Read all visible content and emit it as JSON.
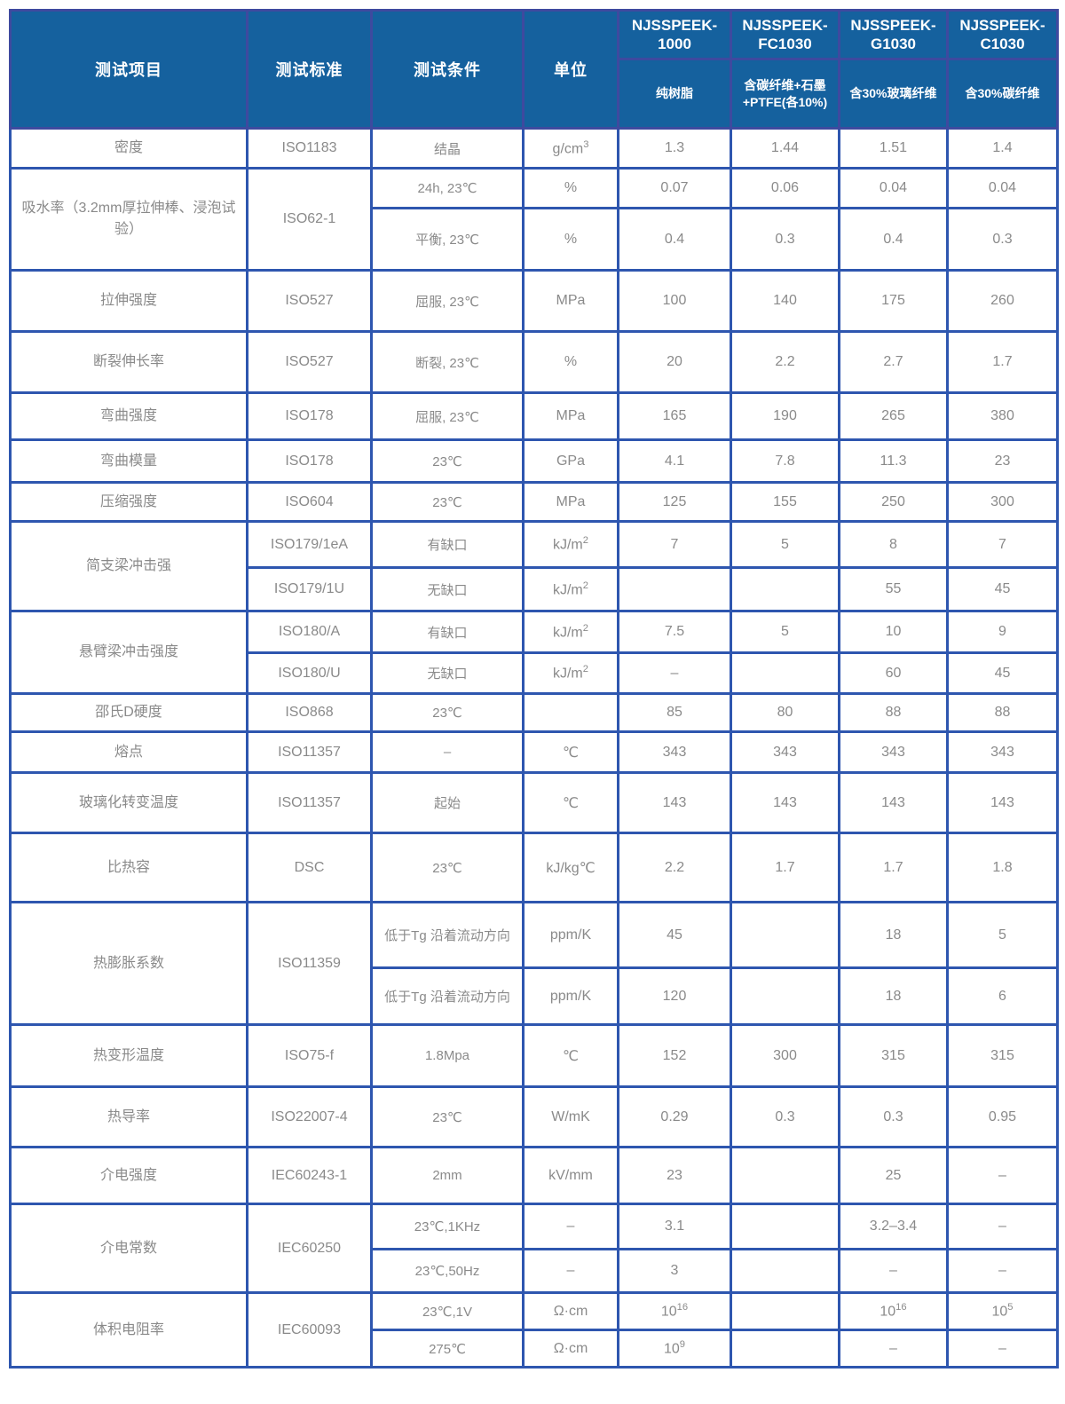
{
  "colors": {
    "header_bg": "#15619e",
    "grid_blue": "#2e56af",
    "header_grid_blue": "#3e4a9f",
    "body_text_gray": "#8a8a8a",
    "header_text": "#ffffff"
  },
  "header": {
    "columns": [
      "测试项目",
      "测试标准",
      "测试条件",
      "单位"
    ],
    "products": [
      {
        "name": "NJSSPEEK-\n1000",
        "desc": "纯树脂"
      },
      {
        "name": "NJSSPEEK-\nFC1030",
        "desc": "含碳纤维+石墨\n+PTFE(各10%)"
      },
      {
        "name": "NJSSPEEK-\nG1030",
        "desc": "含30%玻璃纤维"
      },
      {
        "name": "NJSSPEEK-\nC1030",
        "desc": "含30%碳纤维"
      }
    ]
  },
  "rows": [
    {
      "item": "密度",
      "std": "ISO1183",
      "cond": "结晶",
      "unit": "g/cm^3",
      "v": [
        "1.3",
        "1.44",
        "1.51",
        "1.4"
      ]
    },
    {
      "item": "吸水率（3.2mm厚拉伸棒、浸泡试验）",
      "std": "ISO62-1",
      "cond": "24h, 23℃",
      "unit": "%",
      "v": [
        "0.07",
        "0.06",
        "0.04",
        "0.04"
      ]
    },
    {
      "cond": "平衡, 23℃",
      "unit": "%",
      "v": [
        "0.4",
        "0.3",
        "0.4",
        "0.3"
      ]
    },
    {
      "item": "拉伸强度",
      "std": "ISO527",
      "cond": "屈服, 23℃",
      "unit": "MPa",
      "v": [
        "100",
        "140",
        "175",
        "260"
      ]
    },
    {
      "item": "断裂伸长率",
      "std": "ISO527",
      "cond": "断裂, 23℃",
      "unit": "%",
      "v": [
        "20",
        "2.2",
        "2.7",
        "1.7"
      ]
    },
    {
      "item": "弯曲强度",
      "std": "ISO178",
      "cond": "屈服, 23℃",
      "unit": "MPa",
      "v": [
        "165",
        "190",
        "265",
        "380"
      ]
    },
    {
      "item": "弯曲模量",
      "std": "ISO178",
      "cond": "23℃",
      "unit": "GPa",
      "v": [
        "4.1",
        "7.8",
        "11.3",
        "23"
      ]
    },
    {
      "item": "压缩强度",
      "std": "ISO604",
      "cond": "23℃",
      "unit": "MPa",
      "v": [
        "125",
        "155",
        "250",
        "300"
      ]
    },
    {
      "item": "简支梁冲击强",
      "std": "ISO179/1eA",
      "cond": "有缺口",
      "unit": "kJ/m^2",
      "v": [
        "7",
        "5",
        "8",
        "7"
      ]
    },
    {
      "std": "ISO179/1U",
      "cond": "无缺口",
      "unit": "kJ/m^2",
      "v": [
        "",
        "",
        "55",
        "45"
      ]
    },
    {
      "item": "悬臂梁冲击强度",
      "std": "ISO180/A",
      "cond": "有缺口",
      "unit": "kJ/m^2",
      "v": [
        "7.5",
        "5",
        "10",
        "9"
      ]
    },
    {
      "std": "ISO180/U",
      "cond": "无缺口",
      "unit": "kJ/m^2",
      "v": [
        "–",
        "",
        "60",
        "45"
      ]
    },
    {
      "item": "邵氏D硬度",
      "std": "ISO868",
      "cond": "23℃",
      "unit": "",
      "v": [
        "85",
        "80",
        "88",
        "88"
      ]
    },
    {
      "item": "熔点",
      "std": "ISO11357",
      "cond": "–",
      "unit": "℃",
      "v": [
        "343",
        "343",
        "343",
        "343"
      ]
    },
    {
      "item": "玻璃化转变温度",
      "std": "ISO11357",
      "cond": "起始",
      "unit": "℃",
      "v": [
        "143",
        "143",
        "143",
        "143"
      ]
    },
    {
      "item": "比热容",
      "std": "DSC",
      "cond": "23℃",
      "unit": "kJ/kg℃",
      "v": [
        "2.2",
        "1.7",
        "1.7",
        "1.8"
      ]
    },
    {
      "item": "热膨胀系数",
      "std": "ISO11359",
      "cond": "低于Tg 沿着流动方向",
      "unit": "ppm/K",
      "v": [
        "45",
        "",
        "18",
        "5"
      ]
    },
    {
      "cond": "低于Tg 沿着流动方向",
      "unit": "ppm/K",
      "v": [
        "120",
        "",
        "18",
        "6"
      ]
    },
    {
      "item": "热变形温度",
      "std": "ISO75-f",
      "cond": "1.8Mpa",
      "unit": "℃",
      "v": [
        "152",
        "300",
        "315",
        "315"
      ]
    },
    {
      "item": "热导率",
      "std": "ISO22007-4",
      "cond": "23℃",
      "unit": "W/mK",
      "v": [
        "0.29",
        "0.3",
        "0.3",
        "0.95"
      ]
    },
    {
      "item": "介电强度",
      "std": "IEC60243-1",
      "cond": "2mm",
      "unit": "kV/mm",
      "v": [
        "23",
        "",
        "25",
        "–"
      ]
    },
    {
      "item": "介电常数",
      "std": "IEC60250",
      "cond": "23℃,1KHz",
      "unit": "–",
      "v": [
        "3.1",
        "",
        "3.2–3.4",
        "–"
      ]
    },
    {
      "cond": "23℃,50Hz",
      "unit": "–",
      "v": [
        "3",
        "",
        "–",
        "–"
      ]
    },
    {
      "item": "体积电阻率",
      "std": "IEC60093",
      "cond": "23℃,1V",
      "unit": "Ω·cm",
      "v": [
        "10^16",
        "",
        "10^16",
        "10^5"
      ]
    },
    {
      "cond": "275℃",
      "unit": "Ω·cm",
      "v": [
        "10^9",
        "",
        "–",
        "–"
      ]
    }
  ]
}
